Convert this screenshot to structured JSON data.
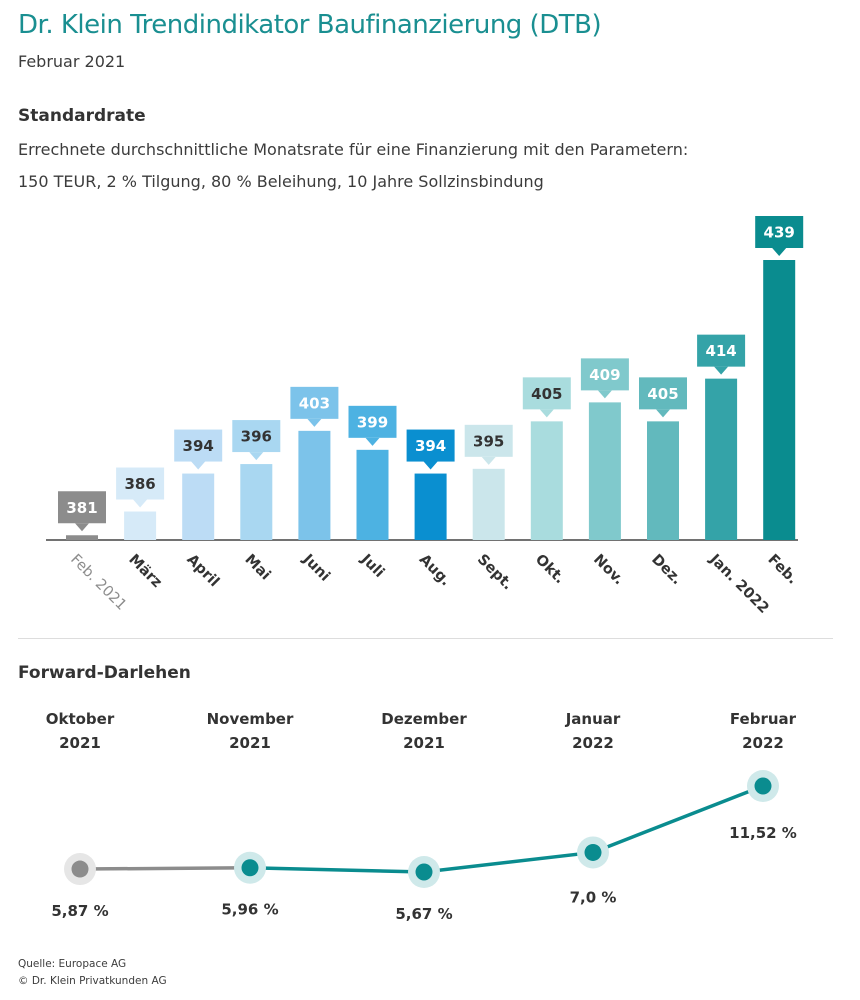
{
  "header": {
    "title": "Dr. Klein Trendindikator Baufinanzierung (DTB)",
    "subtitle": "Februar 2021"
  },
  "standardrate": {
    "heading": "Standardrate",
    "desc_line1": "Errechnete durchschnittliche Monatsrate für eine Finanzierung mit den Parametern:",
    "desc_line2": "150 TEUR, 2 % Tilgung, 80 % Beleihung, 10 Jahre Sollzinsbindung"
  },
  "forward": {
    "heading": "Forward-Darlehen"
  },
  "footer": {
    "source": "Quelle: Europace AG",
    "copyright": "© Dr. Klein Privatkunden AG"
  },
  "chart_data": [
    {
      "type": "bar",
      "categories": [
        "Feb. 2021",
        "März",
        "April",
        "Mai",
        "Juni",
        "Juli",
        "Aug.",
        "Sept.",
        "Okt.",
        "Nov.",
        "Dez.",
        "Jan. 2022",
        "Feb."
      ],
      "values": [
        381,
        386,
        394,
        396,
        403,
        399,
        394,
        395,
        405,
        409,
        405,
        414,
        439
      ],
      "value_labels": [
        "381",
        "386",
        "394",
        "396",
        "403",
        "399",
        "394",
        "395",
        "405",
        "409",
        "405",
        "414",
        "439"
      ],
      "colors": [
        "#8c8c8c",
        "#d6eaf8",
        "#bcdcf5",
        "#a9d7f1",
        "#7cc3ea",
        "#4db2e2",
        "#0a8fd0",
        "#cbe6eb",
        "#a9dcde",
        "#80c9cc",
        "#62b9bd",
        "#34a3a8",
        "#0a8c8f"
      ],
      "ylim": [
        380,
        440
      ],
      "title": "",
      "xlabel": "",
      "ylabel": ""
    },
    {
      "type": "line",
      "categories": [
        "Oktober 2021",
        "November 2021",
        "Dezember 2021",
        "Januar 2022",
        "Februar 2022"
      ],
      "category_lines": [
        [
          "Oktober",
          "2021"
        ],
        [
          "November",
          "2021"
        ],
        [
          "Dezember",
          "2021"
        ],
        [
          "Januar",
          "2022"
        ],
        [
          "Februar",
          "2022"
        ]
      ],
      "values": [
        5.87,
        5.96,
        5.67,
        7.0,
        11.52
      ],
      "value_labels": [
        "5,87 %",
        "5,96 %",
        "5,67 %",
        "7,0 %",
        "11,52 %"
      ],
      "colors": {
        "past": "#8c8c8c",
        "line": "#0a8c8f",
        "halo": "#cfe9ea",
        "halo_past": "#e6e6e6"
      },
      "title": "",
      "xlabel": "",
      "ylabel": ""
    }
  ]
}
